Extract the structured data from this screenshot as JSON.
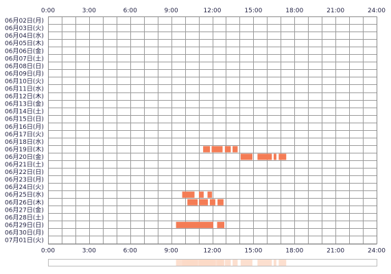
{
  "chart_data": {
    "type": "heatmap",
    "title": "",
    "x_ticks": [
      "0:00",
      "3:00",
      "6:00",
      "9:00",
      "12:00",
      "15:00",
      "18:00",
      "21:00",
      "24:00"
    ],
    "x_range_hours": [
      0,
      24
    ],
    "rows": [
      "06月02日(月)",
      "06月03日(火)",
      "06月04日(水)",
      "06月05日(木)",
      "06月06日(金)",
      "06月07日(土)",
      "06月08日(日)",
      "06月09日(月)",
      "06月10日(火)",
      "06月11日(水)",
      "06月12日(木)",
      "06月13日(金)",
      "06月14日(土)",
      "06月15日(日)",
      "06月16日(月)",
      "06月17日(火)",
      "06月18日(水)",
      "06月19日(木)",
      "06月20日(金)",
      "06月21日(土)",
      "06月22日(日)",
      "06月23日(月)",
      "06月24日(火)",
      "06月25日(水)",
      "06月26日(木)",
      "06月27日(金)",
      "06月28日(土)",
      "06月29日(日)",
      "06月30日(月)",
      "07月01日(火)"
    ],
    "grid": true,
    "active_color": "#f47c55",
    "summary_color": "#fbd9c7",
    "activity": [
      {
        "row": "06月19日(木)",
        "intervals": [
          [
            11.33,
            11.83
          ],
          [
            11.95,
            12.75
          ],
          [
            12.92,
            13.35
          ],
          [
            13.48,
            13.85
          ]
        ]
      },
      {
        "row": "06月20日(金)",
        "intervals": [
          [
            14.07,
            14.93
          ],
          [
            15.3,
            16.35
          ],
          [
            16.48,
            16.68
          ],
          [
            16.85,
            17.4
          ]
        ]
      },
      {
        "row": "06月25日(水)",
        "intervals": [
          [
            9.8,
            10.7
          ],
          [
            11.02,
            11.37
          ],
          [
            11.65,
            11.98
          ]
        ]
      },
      {
        "row": "06月26日(木)",
        "intervals": [
          [
            10.18,
            10.93
          ],
          [
            11.05,
            11.68
          ],
          [
            11.82,
            12.22
          ],
          [
            12.38,
            12.82
          ]
        ]
      },
      {
        "row": "06月29日(日)",
        "intervals": [
          [
            9.35,
            12.07
          ],
          [
            12.35,
            12.88
          ]
        ]
      }
    ]
  }
}
